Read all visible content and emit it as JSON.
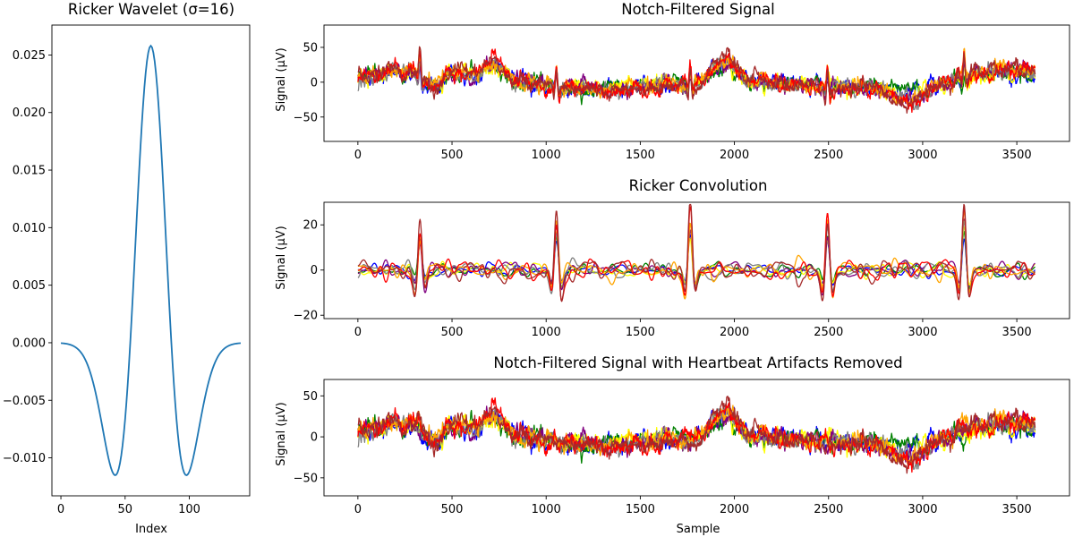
{
  "chart_data": [
    {
      "id": "wavelet",
      "type": "line",
      "title": "Ricker Wavelet (σ=16)",
      "xlabel": "Index",
      "ylabel": "",
      "xlim": [
        -7,
        147
      ],
      "ylim": [
        -0.0133,
        0.0276
      ],
      "xticks": [
        0,
        50,
        100
      ],
      "xtick_labels": [
        "0",
        "50",
        "100"
      ],
      "yticks": [
        -0.01,
        -0.005,
        0.0,
        0.005,
        0.01,
        0.015,
        0.02,
        0.025
      ],
      "ytick_labels": [
        "−0.010",
        "−0.005",
        "0.000",
        "0.005",
        "0.010",
        "0.015",
        "0.020",
        "0.025"
      ],
      "grid": false,
      "wavelet": {
        "sigma": 16,
        "length": 141,
        "center": 70,
        "peak": 0.0258,
        "color": "#1f77b4"
      }
    },
    {
      "id": "notch",
      "type": "line",
      "title": "Notch-Filtered Signal",
      "xlabel": "",
      "ylabel": "Signal (µV)",
      "xlim": [
        -180,
        3780
      ],
      "ylim": [
        -85,
        82
      ],
      "xticks": [
        0,
        500,
        1000,
        1500,
        2000,
        2500,
        3000,
        3500
      ],
      "xtick_labels": [
        "0",
        "500",
        "1000",
        "1500",
        "2000",
        "2500",
        "3000",
        "3500"
      ],
      "yticks": [
        -50,
        0,
        50
      ],
      "ytick_labels": [
        "−50",
        "0",
        "50"
      ],
      "grid": false,
      "n_samples": 3600,
      "series": [
        {
          "name": "blue",
          "color": "#0000ff"
        },
        {
          "name": "green",
          "color": "#008000"
        },
        {
          "name": "yellow",
          "color": "#ffff00"
        },
        {
          "name": "purple",
          "color": "#800080"
        },
        {
          "name": "gray",
          "color": "#808080"
        },
        {
          "name": "orange",
          "color": "#ffa500"
        },
        {
          "name": "red",
          "color": "#ff0000"
        },
        {
          "name": "brown",
          "color": "#a52a2a"
        }
      ]
    },
    {
      "id": "ricker",
      "type": "line",
      "title": "Ricker Convolution",
      "xlabel": "",
      "ylabel": "Signal (µV)",
      "xlim": [
        -180,
        3780
      ],
      "ylim": [
        -21.5,
        30
      ],
      "xticks": [
        0,
        500,
        1000,
        1500,
        2000,
        2500,
        3000,
        3500
      ],
      "xtick_labels": [
        "0",
        "500",
        "1000",
        "1500",
        "2000",
        "2500",
        "3000",
        "3500"
      ],
      "yticks": [
        -20,
        0,
        20
      ],
      "ytick_labels": [
        "−20",
        "0",
        "20"
      ],
      "grid": false,
      "n_samples": 3600,
      "spikes": [
        {
          "x": 330,
          "amp": 20
        },
        {
          "x": 1055,
          "amp": 23
        },
        {
          "x": 1765,
          "amp": 24
        },
        {
          "x": 2495,
          "amp": 23
        },
        {
          "x": 3220,
          "amp": 27
        }
      ],
      "series": [
        {
          "name": "blue",
          "color": "#0000ff"
        },
        {
          "name": "green",
          "color": "#008000"
        },
        {
          "name": "yellow",
          "color": "#ffff00"
        },
        {
          "name": "purple",
          "color": "#800080"
        },
        {
          "name": "gray",
          "color": "#808080"
        },
        {
          "name": "orange",
          "color": "#ffa500"
        },
        {
          "name": "red",
          "color": "#ff0000"
        },
        {
          "name": "brown",
          "color": "#a52a2a"
        }
      ]
    },
    {
      "id": "cleaned",
      "type": "line",
      "title": "Notch-Filtered Signal with Heartbeat Artifacts Removed",
      "xlabel": "Sample",
      "ylabel": "Signal (µV)",
      "xlim": [
        -180,
        3780
      ],
      "ylim": [
        -72,
        70
      ],
      "xticks": [
        0,
        500,
        1000,
        1500,
        2000,
        2500,
        3000,
        3500
      ],
      "xtick_labels": [
        "0",
        "500",
        "1000",
        "1500",
        "2000",
        "2500",
        "3000",
        "3500"
      ],
      "yticks": [
        -50,
        0,
        50
      ],
      "ytick_labels": [
        "−50",
        "0",
        "50"
      ],
      "grid": false,
      "n_samples": 3600,
      "series": [
        {
          "name": "blue",
          "color": "#0000ff"
        },
        {
          "name": "green",
          "color": "#008000"
        },
        {
          "name": "yellow",
          "color": "#ffff00"
        },
        {
          "name": "purple",
          "color": "#800080"
        },
        {
          "name": "gray",
          "color": "#808080"
        },
        {
          "name": "orange",
          "color": "#ffa500"
        },
        {
          "name": "red",
          "color": "#ff0000"
        },
        {
          "name": "brown",
          "color": "#a52a2a"
        }
      ]
    }
  ]
}
